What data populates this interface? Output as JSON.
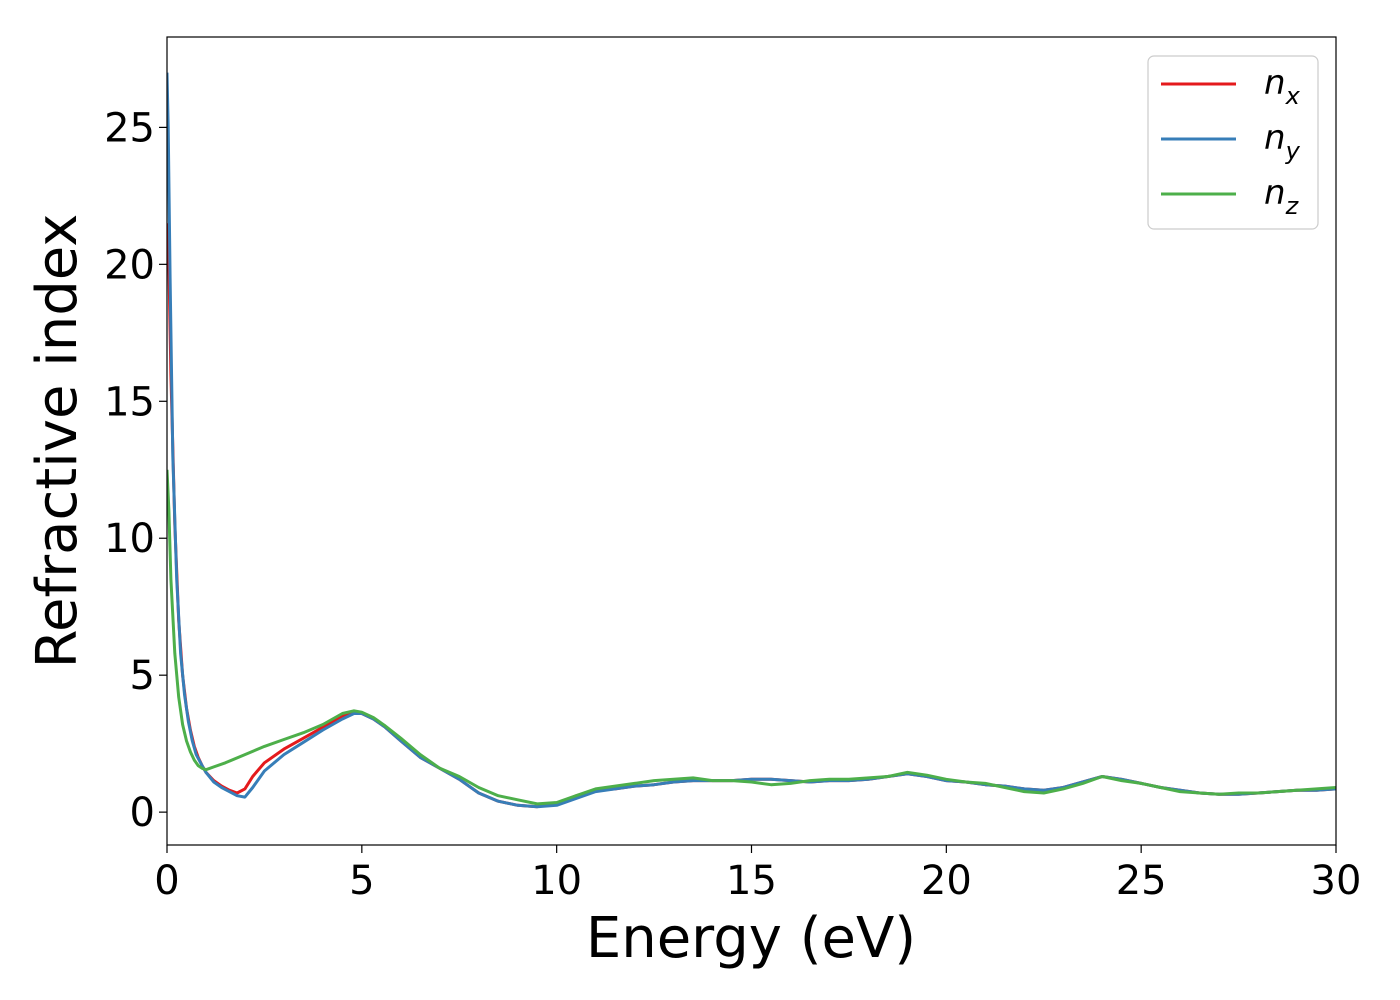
{
  "chart_data": {
    "type": "line",
    "xlabel": "Energy (eV)",
    "ylabel": "Refractive index",
    "xlim": [
      0,
      30
    ],
    "ylim": [
      -1.2,
      28.3
    ],
    "xticks": [
      0,
      5,
      10,
      15,
      20,
      25,
      30
    ],
    "yticks": [
      0,
      5,
      10,
      15,
      20,
      25
    ],
    "grid": false,
    "legend_position": "top-right",
    "series": [
      {
        "name": "n_x",
        "legend_base": "n",
        "legend_sub": "x",
        "color": "#e41a1c",
        "x": [
          0,
          0.05,
          0.1,
          0.2,
          0.3,
          0.4,
          0.5,
          0.6,
          0.7,
          0.8,
          0.9,
          1.0,
          1.2,
          1.4,
          1.6,
          1.8,
          2.0,
          2.2,
          2.5,
          3.0,
          3.5,
          4.0,
          4.5,
          4.8,
          5.0,
          5.3,
          5.6,
          6.0,
          6.5,
          7.0,
          7.5,
          8.0,
          8.5,
          9.0,
          9.5,
          10.0,
          10.5,
          11.0,
          11.5,
          12.0,
          12.5,
          13.0,
          13.5,
          14.0,
          14.5,
          15.0,
          15.5,
          16.0,
          16.5,
          17.0,
          17.5,
          18.0,
          18.5,
          19.0,
          19.5,
          20.0,
          20.5,
          21.0,
          21.5,
          22.0,
          22.5,
          23.0,
          23.5,
          24.0,
          24.5,
          25.0,
          25.5,
          26.0,
          26.5,
          27.0,
          27.5,
          28.0,
          28.5,
          29.0,
          29.5,
          30.0
        ],
        "y": [
          21.5,
          20.0,
          16.0,
          10.5,
          7.0,
          5.0,
          3.8,
          3.0,
          2.4,
          2.0,
          1.7,
          1.45,
          1.15,
          0.95,
          0.8,
          0.7,
          0.85,
          1.3,
          1.8,
          2.3,
          2.7,
          3.1,
          3.5,
          3.65,
          3.6,
          3.4,
          3.1,
          2.6,
          2.0,
          1.6,
          1.2,
          0.7,
          0.4,
          0.25,
          0.2,
          0.3,
          0.6,
          0.8,
          0.85,
          0.95,
          1.0,
          1.1,
          1.15,
          1.15,
          1.15,
          1.2,
          1.2,
          1.15,
          1.1,
          1.15,
          1.15,
          1.2,
          1.3,
          1.4,
          1.3,
          1.15,
          1.1,
          1.0,
          0.95,
          0.85,
          0.8,
          0.9,
          1.1,
          1.3,
          1.2,
          1.05,
          0.9,
          0.8,
          0.7,
          0.65,
          0.65,
          0.7,
          0.75,
          0.8,
          0.8,
          0.85
        ]
      },
      {
        "name": "n_y",
        "legend_base": "n",
        "legend_sub": "y",
        "color": "#377eb8",
        "x": [
          0,
          0.03,
          0.08,
          0.15,
          0.25,
          0.35,
          0.45,
          0.55,
          0.65,
          0.75,
          0.9,
          1.0,
          1.2,
          1.4,
          1.6,
          1.8,
          2.0,
          2.2,
          2.5,
          3.0,
          3.5,
          4.0,
          4.5,
          4.8,
          5.0,
          5.3,
          5.6,
          6.0,
          6.5,
          7.0,
          7.5,
          8.0,
          8.5,
          9.0,
          9.5,
          10.0,
          10.5,
          11.0,
          11.5,
          12.0,
          12.5,
          13.0,
          13.5,
          14.0,
          14.5,
          15.0,
          15.5,
          16.0,
          16.5,
          17.0,
          17.5,
          18.0,
          18.5,
          19.0,
          19.5,
          20.0,
          20.5,
          21.0,
          21.5,
          22.0,
          22.5,
          23.0,
          23.5,
          24.0,
          24.5,
          25.0,
          25.5,
          26.0,
          26.5,
          27.0,
          27.5,
          28.0,
          28.5,
          29.0,
          29.5,
          30.0
        ],
        "y": [
          27.0,
          25.0,
          19.5,
          13.0,
          8.5,
          5.8,
          4.3,
          3.3,
          2.6,
          2.1,
          1.7,
          1.45,
          1.1,
          0.9,
          0.75,
          0.6,
          0.55,
          0.9,
          1.5,
          2.1,
          2.55,
          3.0,
          3.4,
          3.6,
          3.6,
          3.4,
          3.1,
          2.6,
          2.0,
          1.6,
          1.2,
          0.7,
          0.4,
          0.25,
          0.2,
          0.25,
          0.5,
          0.75,
          0.85,
          0.95,
          1.0,
          1.1,
          1.15,
          1.15,
          1.15,
          1.2,
          1.2,
          1.15,
          1.1,
          1.15,
          1.15,
          1.2,
          1.3,
          1.4,
          1.3,
          1.15,
          1.1,
          1.0,
          0.95,
          0.85,
          0.8,
          0.9,
          1.1,
          1.3,
          1.2,
          1.05,
          0.9,
          0.8,
          0.7,
          0.65,
          0.65,
          0.7,
          0.75,
          0.8,
          0.8,
          0.85
        ]
      },
      {
        "name": "n_z",
        "legend_base": "n",
        "legend_sub": "z",
        "color": "#4daf4a",
        "x": [
          0,
          0.05,
          0.1,
          0.2,
          0.3,
          0.4,
          0.5,
          0.6,
          0.7,
          0.8,
          0.9,
          1.0,
          1.2,
          1.5,
          2.0,
          2.5,
          3.0,
          3.5,
          4.0,
          4.5,
          4.8,
          5.0,
          5.3,
          5.6,
          6.0,
          6.5,
          7.0,
          7.5,
          8.0,
          8.5,
          9.0,
          9.5,
          10.0,
          10.5,
          11.0,
          11.5,
          12.0,
          12.5,
          13.0,
          13.5,
          14.0,
          14.5,
          15.0,
          15.5,
          16.0,
          16.5,
          17.0,
          17.5,
          18.0,
          18.5,
          19.0,
          19.5,
          20.0,
          20.5,
          21.0,
          21.5,
          22.0,
          22.5,
          23.0,
          23.5,
          24.0,
          24.5,
          25.0,
          25.5,
          26.0,
          26.5,
          27.0,
          27.5,
          28.0,
          28.5,
          29.0,
          29.5,
          30.0
        ],
        "y": [
          12.5,
          11.0,
          8.5,
          5.8,
          4.2,
          3.2,
          2.6,
          2.2,
          1.9,
          1.7,
          1.6,
          1.55,
          1.65,
          1.8,
          2.1,
          2.4,
          2.65,
          2.9,
          3.2,
          3.6,
          3.7,
          3.65,
          3.45,
          3.15,
          2.7,
          2.1,
          1.6,
          1.3,
          0.9,
          0.6,
          0.45,
          0.3,
          0.35,
          0.6,
          0.85,
          0.95,
          1.05,
          1.15,
          1.2,
          1.25,
          1.15,
          1.15,
          1.1,
          1.0,
          1.05,
          1.15,
          1.2,
          1.2,
          1.25,
          1.3,
          1.45,
          1.35,
          1.2,
          1.1,
          1.05,
          0.9,
          0.75,
          0.7,
          0.85,
          1.05,
          1.3,
          1.15,
          1.05,
          0.9,
          0.75,
          0.7,
          0.65,
          0.7,
          0.7,
          0.75,
          0.8,
          0.85,
          0.9
        ]
      }
    ]
  }
}
